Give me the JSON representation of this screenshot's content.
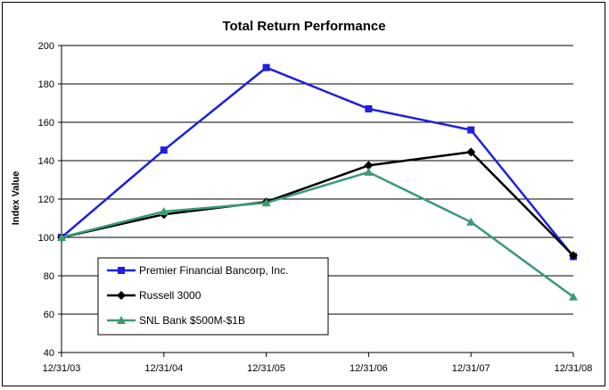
{
  "chart_data": {
    "type": "line",
    "title": "Total Return Performance",
    "ylabel": "Index Value",
    "xlabel": "",
    "ylim": [
      40,
      200
    ],
    "yticks": [
      40,
      60,
      80,
      100,
      120,
      140,
      160,
      180,
      200
    ],
    "grid": true,
    "legend_position": "bottom-left",
    "categories": [
      "12/31/03",
      "12/31/04",
      "12/31/05",
      "12/31/06",
      "12/31/07",
      "12/31/08"
    ],
    "series": [
      {
        "name": "Premier Financial Bancorp, Inc.",
        "color": "#1F1FE0",
        "marker": "square",
        "values": [
          100,
          145.5,
          188.5,
          167,
          156,
          90
        ]
      },
      {
        "name": "Russell 3000",
        "color": "#000000",
        "marker": "diamond",
        "values": [
          100,
          112,
          118.5,
          137.5,
          144.5,
          90.5
        ]
      },
      {
        "name": "SNL Bank $500M-$1B",
        "color": "#3A9A74",
        "marker": "triangle",
        "values": [
          100,
          113.5,
          118,
          134,
          108,
          69
        ]
      }
    ]
  }
}
